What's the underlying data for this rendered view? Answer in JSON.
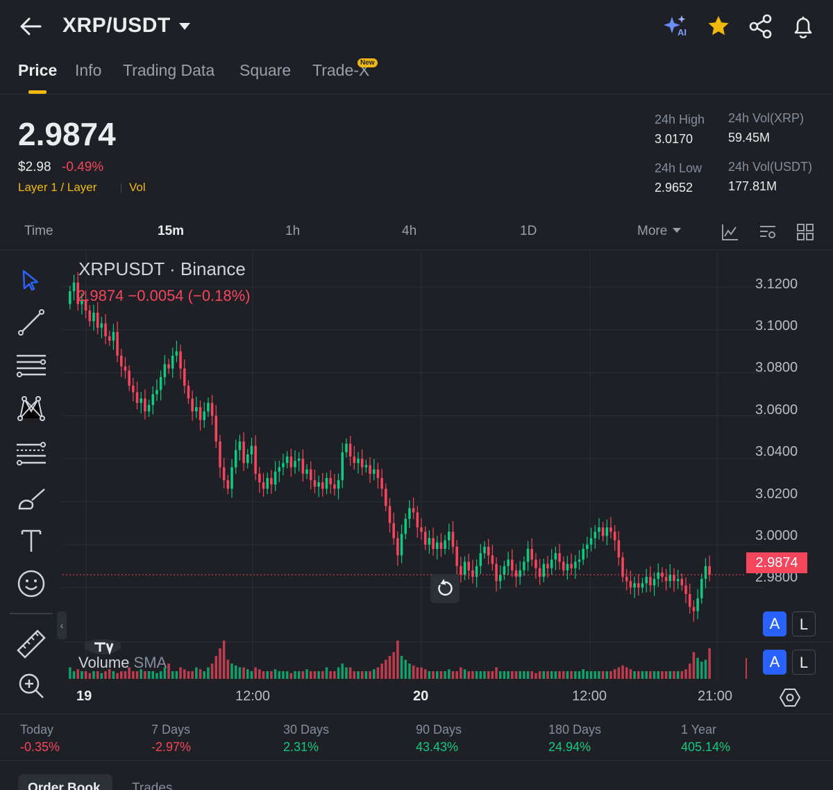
{
  "header": {
    "pair": "XRP/USDT",
    "ai_label": "AI"
  },
  "tabs": [
    {
      "label": "Price"
    },
    {
      "label": "Info"
    },
    {
      "label": "Trading Data"
    },
    {
      "label": "Square"
    },
    {
      "label": "Trade-X"
    }
  ],
  "new_badge": "New",
  "price": {
    "last": "2.9874",
    "usd": "$2.98",
    "change": "-0.49%",
    "tag1": "Layer 1 / Layer",
    "tag2": "Vol"
  },
  "stats": {
    "high_label": "24h High",
    "high_value": "3.0170",
    "low_label": "24h Low",
    "low_value": "2.9652",
    "vol_xrp_label": "24h Vol(XRP)",
    "vol_xrp_value": "59.45M",
    "vol_usdt_label": "24h Vol(USDT)",
    "vol_usdt_value": "177.81M"
  },
  "intervals": [
    {
      "label": "Time"
    },
    {
      "label": "15m"
    },
    {
      "label": "1h"
    },
    {
      "label": "4h"
    },
    {
      "label": "1D"
    },
    {
      "label": "More"
    }
  ],
  "chart": {
    "title": "XRPUSDT · Binance",
    "ohlc": "2.9874  −0.0054 (−0.18%)",
    "y_ticks": [
      "3.1200",
      "3.1000",
      "3.0800",
      "3.0600",
      "3.0400",
      "3.0200",
      "3.0000",
      "2.9800"
    ],
    "last_price_tag": "2.9874",
    "x_ticks": [
      {
        "label": "19",
        "bold": true
      },
      {
        "label": "12:00",
        "bold": false
      },
      {
        "label": "20",
        "bold": true
      },
      {
        "label": "12:00",
        "bold": false
      },
      {
        "label": "21:00",
        "bold": false
      }
    ],
    "volume_label": "Volume",
    "volume_sma": "SMA",
    "a_label": "A",
    "l_label": "L",
    "collapse_glyph": "‹"
  },
  "chart_data": {
    "type": "candlestick",
    "ylim": [
      2.965,
      3.13
    ],
    "grid": true,
    "close": [
      3.118,
      3.122,
      3.112,
      3.114,
      3.109,
      3.104,
      3.108,
      3.101,
      3.103,
      3.097,
      3.095,
      3.099,
      3.088,
      3.083,
      3.081,
      3.074,
      3.071,
      3.066,
      3.068,
      3.062,
      3.065,
      3.07,
      3.072,
      3.078,
      3.084,
      3.082,
      3.088,
      3.09,
      3.082,
      3.074,
      3.068,
      3.062,
      3.064,
      3.058,
      3.062,
      3.066,
      3.06,
      3.048,
      3.036,
      3.03,
      3.026,
      3.036,
      3.044,
      3.048,
      3.038,
      3.042,
      3.046,
      3.033,
      3.029,
      3.026,
      3.031,
      3.028,
      3.034,
      3.036,
      3.038,
      3.041,
      3.036,
      3.039,
      3.04,
      3.033,
      3.035,
      3.03,
      3.027,
      3.029,
      3.026,
      3.031,
      3.028,
      3.026,
      3.03,
      3.043,
      3.047,
      3.041,
      3.038,
      3.04,
      3.036,
      3.037,
      3.033,
      3.035,
      3.031,
      3.026,
      3.018,
      3.01,
      3.003,
      2.995,
      3.005,
      3.012,
      3.017,
      3.015,
      3.008,
      3.006,
      3.0,
      3.003,
      2.998,
      3.001,
      2.998,
      3.002,
      3.006,
      2.999,
      2.99,
      2.986,
      2.992,
      2.988,
      2.985,
      2.99,
      2.996,
      2.999,
      2.995,
      2.991,
      2.983,
      2.986,
      2.99,
      2.993,
      2.988,
      2.985,
      2.988,
      2.992,
      2.998,
      2.993,
      2.989,
      2.985,
      2.991,
      2.989,
      2.993,
      2.996,
      2.992,
      2.988,
      2.991,
      2.989,
      2.992,
      2.993,
      2.998,
      3.0,
      3.003,
      3.006,
      3.008,
      3.004,
      3.008,
      3.006,
      3.002,
      2.994,
      2.985,
      2.983,
      2.98,
      2.982,
      2.98,
      2.982,
      2.985,
      2.981,
      2.984,
      2.987,
      2.985,
      2.983,
      2.986,
      2.983,
      2.984,
      2.981,
      2.977,
      2.971,
      2.969,
      2.975,
      2.984,
      2.99,
      2.986
    ],
    "volume_relative": [
      0.3,
      0.2,
      0.25,
      0.2,
      0.2,
      0.15,
      0.2,
      0.2,
      0.15,
      0.2,
      0.25,
      0.2,
      0.15,
      0.2,
      0.2,
      0.3,
      0.2,
      0.2,
      0.25,
      0.2,
      0.2,
      0.2,
      0.15,
      0.2,
      0.3,
      0.4,
      0.2,
      0.2,
      0.3,
      0.25,
      0.2,
      0.2,
      0.3,
      0.25,
      0.2,
      0.3,
      0.4,
      0.6,
      0.8,
      1.0,
      0.5,
      0.4,
      0.35,
      0.3,
      0.3,
      0.25,
      0.2,
      0.3,
      0.25,
      0.2,
      0.2,
      0.2,
      0.25,
      0.2,
      0.2,
      0.2,
      0.15,
      0.2,
      0.2,
      0.2,
      0.25,
      0.2,
      0.2,
      0.2,
      0.2,
      0.3,
      0.2,
      0.2,
      0.3,
      0.4,
      0.3,
      0.3,
      0.2,
      0.2,
      0.2,
      0.2,
      0.2,
      0.25,
      0.3,
      0.4,
      0.5,
      0.6,
      0.7,
      1.0,
      0.6,
      0.5,
      0.4,
      0.35,
      0.3,
      0.3,
      0.25,
      0.2,
      0.2,
      0.2,
      0.2,
      0.2,
      0.25,
      0.2,
      0.2,
      0.3,
      0.25,
      0.2,
      0.2,
      0.2,
      0.2,
      0.2,
      0.2,
      0.2,
      0.3,
      0.2,
      0.2,
      0.2,
      0.2,
      0.2,
      0.2,
      0.2,
      0.2,
      0.2,
      0.15,
      0.2,
      0.2,
      0.2,
      0.2,
      0.2,
      0.2,
      0.2,
      0.2,
      0.2,
      0.2,
      0.2,
      0.25,
      0.2,
      0.2,
      0.2,
      0.2,
      0.2,
      0.2,
      0.2,
      0.25,
      0.3,
      0.35,
      0.3,
      0.25,
      0.2,
      0.2,
      0.2,
      0.2,
      0.2,
      0.2,
      0.2,
      0.2,
      0.2,
      0.2,
      0.2,
      0.2,
      0.2,
      0.25,
      0.4,
      0.7,
      0.55,
      0.45,
      0.5,
      0.8,
      0.6,
      0.4
    ]
  },
  "performance": [
    {
      "label": "Today",
      "value": "-0.35%",
      "sign": "neg"
    },
    {
      "label": "7 Days",
      "value": "-2.97%",
      "sign": "neg"
    },
    {
      "label": "30 Days",
      "value": "2.31%",
      "sign": "pos"
    },
    {
      "label": "90 Days",
      "value": "43.43%",
      "sign": "pos"
    },
    {
      "label": "180 Days",
      "value": "24.94%",
      "sign": "pos"
    },
    {
      "label": "1 Year",
      "value": "405.14%",
      "sign": "pos"
    }
  ],
  "bottom_tabs": {
    "order_book": "Order Book",
    "trades": "Trades"
  },
  "colors": {
    "up": "#0ecb81",
    "down": "#f6465d",
    "accent": "#f0b90b",
    "grid": "#2b2f36"
  }
}
